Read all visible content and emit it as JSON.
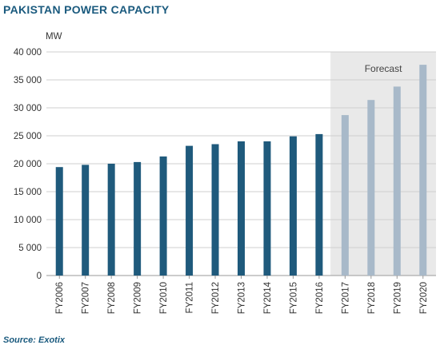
{
  "header": {
    "title": "PAKISTAN POWER CAPACITY"
  },
  "footer": {
    "source": "Source: Exotix"
  },
  "chart_data": {
    "type": "bar",
    "title": "PAKISTAN POWER CAPACITY",
    "ylabel": "MW",
    "xlabel": "",
    "ylim": [
      0,
      40000
    ],
    "yticks": [
      0,
      5000,
      10000,
      15000,
      20000,
      25000,
      30000,
      35000,
      40000
    ],
    "ytick_labels": [
      "0",
      "5 000",
      "10 000",
      "15 000",
      "20 000",
      "25 000",
      "30 000",
      "35 000",
      "40 000"
    ],
    "grid": true,
    "categories": [
      "FY2006",
      "FY2007",
      "FY2008",
      "FY2009",
      "FY2010",
      "FY2011",
      "FY2012",
      "FY2013",
      "FY2014",
      "FY2015",
      "FY2016",
      "FY2017",
      "FY2018",
      "FY2019",
      "FY2020"
    ],
    "values": [
      19400,
      19800,
      20000,
      20300,
      21300,
      23200,
      23500,
      24000,
      24000,
      24900,
      25300,
      28700,
      31400,
      33800,
      37700
    ],
    "forecast_start_index": 11,
    "forecast_label": "Forecast",
    "colors": {
      "actual": "#1f5a7c",
      "forecast": "#a8b9c9",
      "forecast_bg": "#e9e9e9",
      "grid": "#cfcfcf"
    }
  }
}
